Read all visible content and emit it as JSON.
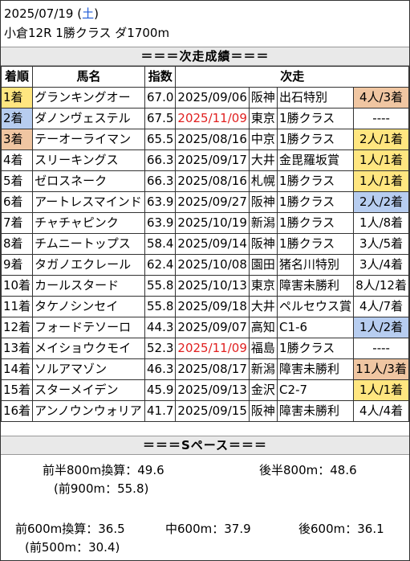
{
  "header": {
    "date": "2025/07/19",
    "weekday_open": "(",
    "weekday": "土",
    "weekday_close": ")",
    "race": "小倉12R 1勝クラス ダ1700m"
  },
  "sections": {
    "next_results": "＝＝＝次走成績＝＝＝",
    "space": "＝＝＝Sペース＝＝＝"
  },
  "columns": {
    "finish": "着順",
    "horse": "馬名",
    "index": "指数",
    "next": "次走"
  },
  "rows": [
    {
      "finish": "1着",
      "horse": "グランキングオー",
      "index": "67.0",
      "date": "2025/09/06",
      "venue": "阪神",
      "race": "出石特別",
      "result": "4人/3着"
    },
    {
      "finish": "2着",
      "horse": "ダノンヴェステル",
      "index": "67.5",
      "date": "2025/11/09",
      "venue": "東京",
      "race": "1勝クラス",
      "result": "----"
    },
    {
      "finish": "3着",
      "horse": "テーオーライマン",
      "index": "65.5",
      "date": "2025/08/16",
      "venue": "中京",
      "race": "1勝クラス",
      "result": "2人/1着"
    },
    {
      "finish": "4着",
      "horse": "スリーキングス",
      "index": "66.3",
      "date": "2025/09/17",
      "venue": "大井",
      "race": "金毘羅坂賞",
      "result": "1人/1着"
    },
    {
      "finish": "5着",
      "horse": "ゼロスネーク",
      "index": "66.3",
      "date": "2025/08/16",
      "venue": "札幌",
      "race": "1勝クラス",
      "result": "1人/1着"
    },
    {
      "finish": "6着",
      "horse": "アートレスマインド",
      "index": "63.9",
      "date": "2025/09/27",
      "venue": "阪神",
      "race": "1勝クラス",
      "result": "2人/2着"
    },
    {
      "finish": "7着",
      "horse": "チャチャピンク",
      "index": "63.9",
      "date": "2025/10/19",
      "venue": "新潟",
      "race": "1勝クラス",
      "result": "1人/8着"
    },
    {
      "finish": "8着",
      "horse": "チムニートップス",
      "index": "58.4",
      "date": "2025/09/14",
      "venue": "阪神",
      "race": "1勝クラス",
      "result": "3人/5着"
    },
    {
      "finish": "9着",
      "horse": "タガノエクレール",
      "index": "62.4",
      "date": "2025/10/08",
      "venue": "園田",
      "race": "猪名川特別",
      "result": "3人/4着"
    },
    {
      "finish": "10着",
      "horse": "カールスタード",
      "index": "55.8",
      "date": "2025/10/13",
      "venue": "東京",
      "race": "障害未勝利",
      "result": "8人/12着"
    },
    {
      "finish": "11着",
      "horse": "タケノシンセイ",
      "index": "55.8",
      "date": "2025/09/18",
      "venue": "大井",
      "race": "ペルセウス賞",
      "result": "4人/7着"
    },
    {
      "finish": "12着",
      "horse": "フォードテソーロ",
      "index": "44.3",
      "date": "2025/09/07",
      "venue": "高知",
      "race": "C1-6",
      "result": "1人/2着"
    },
    {
      "finish": "13着",
      "horse": "メイショウクモイ",
      "index": "52.3",
      "date": "2025/11/09",
      "venue": "福島",
      "race": "1勝クラス",
      "result": "----"
    },
    {
      "finish": "14着",
      "horse": "ソルアマゾン",
      "index": "46.3",
      "date": "2025/08/17",
      "venue": "新潟",
      "race": "障害未勝利",
      "result": "11人/3着"
    },
    {
      "finish": "15着",
      "horse": "スターメイデン",
      "index": "45.9",
      "date": "2025/09/13",
      "venue": "金沢",
      "race": "C2-7",
      "result": "1人/1着"
    },
    {
      "finish": "16着",
      "horse": "アンノウンウォリア",
      "index": "41.7",
      "date": "2025/09/15",
      "venue": "阪神",
      "race": "障害未勝利",
      "result": "4人/4着"
    }
  ],
  "highlight_colors": {
    "first": "#ffe680",
    "second": "#b7cdf0",
    "third": "#f0c6a2",
    "future_date": "#e02020"
  },
  "pace": {
    "first800": "前半800m換算：49.6",
    "second800": "後半800m：48.6",
    "first900": "(前900m：55.8)",
    "first600": "前600m換算：36.5",
    "mid600": "中600m：37.9",
    "last600": "後600m：36.1",
    "first500": "(前500m：30.4)"
  }
}
